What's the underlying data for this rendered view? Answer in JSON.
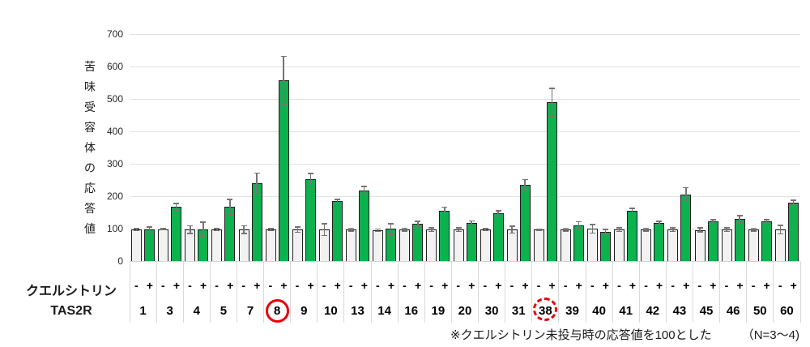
{
  "y_axis": {
    "title": "苦味受容体の応答値",
    "ticks": [
      0,
      100,
      200,
      300,
      400,
      500,
      600,
      700
    ],
    "ylim": [
      0,
      700
    ]
  },
  "rows": {
    "row1_label": "クエルシトリン",
    "row2_label": "TAS2R",
    "minus_symbol": "-",
    "plus_symbol": "+"
  },
  "footnote": {
    "text": "※クエルシトリン未投与時の応答値を100とした",
    "n_text": "（N=3～4)"
  },
  "colors": {
    "bar_plus_green": "#0db14e",
    "bar_minus_gray": "#f2f2f2",
    "bar_border": "#1f1f1f",
    "error_bar": "#757575",
    "gridline": "#e2e2e2",
    "divider": "#d9d9d9",
    "highlight_red": "#e8000b"
  },
  "chart_data": {
    "type": "bar",
    "title": "",
    "ylabel": "苦味受容体の応答値",
    "ylim": [
      0,
      700
    ],
    "grid": true,
    "legend": false,
    "series_labels": {
      "minus": "クエルシトリン -（未投与）",
      "plus": "クエルシトリン +（投与）"
    },
    "groups": [
      {
        "tas2r": "1",
        "minus": {
          "value": 97,
          "err": 5
        },
        "plus": {
          "value": 97,
          "err": 10
        },
        "circled": null
      },
      {
        "tas2r": "3",
        "minus": {
          "value": 98,
          "err": 4
        },
        "plus": {
          "value": 168,
          "err": 12
        },
        "circled": null
      },
      {
        "tas2r": "4",
        "minus": {
          "value": 97,
          "err": 14
        },
        "plus": {
          "value": 98,
          "err": 24
        },
        "circled": null
      },
      {
        "tas2r": "5",
        "minus": {
          "value": 97,
          "err": 5
        },
        "plus": {
          "value": 167,
          "err": 25
        },
        "circled": null
      },
      {
        "tas2r": "7",
        "minus": {
          "value": 97,
          "err": 14
        },
        "plus": {
          "value": 240,
          "err": 33
        },
        "circled": null
      },
      {
        "tas2r": "8",
        "minus": {
          "value": 97,
          "err": 5
        },
        "plus": {
          "value": 557,
          "err": 76
        },
        "circled": "solid"
      },
      {
        "tas2r": "9",
        "minus": {
          "value": 97,
          "err": 10
        },
        "plus": {
          "value": 252,
          "err": 20
        },
        "circled": null
      },
      {
        "tas2r": "10",
        "minus": {
          "value": 97,
          "err": 20
        },
        "plus": {
          "value": 184,
          "err": 8
        },
        "circled": null
      },
      {
        "tas2r": "13",
        "minus": {
          "value": 97,
          "err": 6
        },
        "plus": {
          "value": 218,
          "err": 14
        },
        "circled": null
      },
      {
        "tas2r": "14",
        "minus": {
          "value": 95,
          "err": 6
        },
        "plus": {
          "value": 99,
          "err": 18
        },
        "circled": null
      },
      {
        "tas2r": "16",
        "minus": {
          "value": 97,
          "err": 6
        },
        "plus": {
          "value": 114,
          "err": 10
        },
        "circled": null
      },
      {
        "tas2r": "19",
        "minus": {
          "value": 97,
          "err": 8
        },
        "plus": {
          "value": 156,
          "err": 12
        },
        "circled": null
      },
      {
        "tas2r": "20",
        "minus": {
          "value": 97,
          "err": 8
        },
        "plus": {
          "value": 118,
          "err": 8
        },
        "circled": null
      },
      {
        "tas2r": "30",
        "minus": {
          "value": 97,
          "err": 5
        },
        "plus": {
          "value": 147,
          "err": 10
        },
        "circled": null
      },
      {
        "tas2r": "31",
        "minus": {
          "value": 97,
          "err": 12
        },
        "plus": {
          "value": 235,
          "err": 18
        },
        "circled": null
      },
      {
        "tas2r": "38",
        "minus": {
          "value": 97,
          "err": 4
        },
        "plus": {
          "value": 490,
          "err": 45
        },
        "circled": "dashed"
      },
      {
        "tas2r": "39",
        "minus": {
          "value": 97,
          "err": 6
        },
        "plus": {
          "value": 111,
          "err": 12
        },
        "circled": null
      },
      {
        "tas2r": "40",
        "minus": {
          "value": 99,
          "err": 15
        },
        "plus": {
          "value": 91,
          "err": 8
        },
        "circled": null
      },
      {
        "tas2r": "41",
        "minus": {
          "value": 97,
          "err": 8
        },
        "plus": {
          "value": 155,
          "err": 10
        },
        "circled": null
      },
      {
        "tas2r": "42",
        "minus": {
          "value": 97,
          "err": 6
        },
        "plus": {
          "value": 118,
          "err": 6
        },
        "circled": null
      },
      {
        "tas2r": "43",
        "minus": {
          "value": 97,
          "err": 8
        },
        "plus": {
          "value": 206,
          "err": 22
        },
        "circled": null
      },
      {
        "tas2r": "45",
        "minus": {
          "value": 96,
          "err": 8
        },
        "plus": {
          "value": 122,
          "err": 7
        },
        "circled": null
      },
      {
        "tas2r": "46",
        "minus": {
          "value": 97,
          "err": 8
        },
        "plus": {
          "value": 130,
          "err": 12
        },
        "circled": null
      },
      {
        "tas2r": "50",
        "minus": {
          "value": 97,
          "err": 6
        },
        "plus": {
          "value": 123,
          "err": 6
        },
        "circled": null
      },
      {
        "tas2r": "60",
        "minus": {
          "value": 97,
          "err": 15
        },
        "plus": {
          "value": 181,
          "err": 9
        },
        "circled": null
      }
    ]
  }
}
